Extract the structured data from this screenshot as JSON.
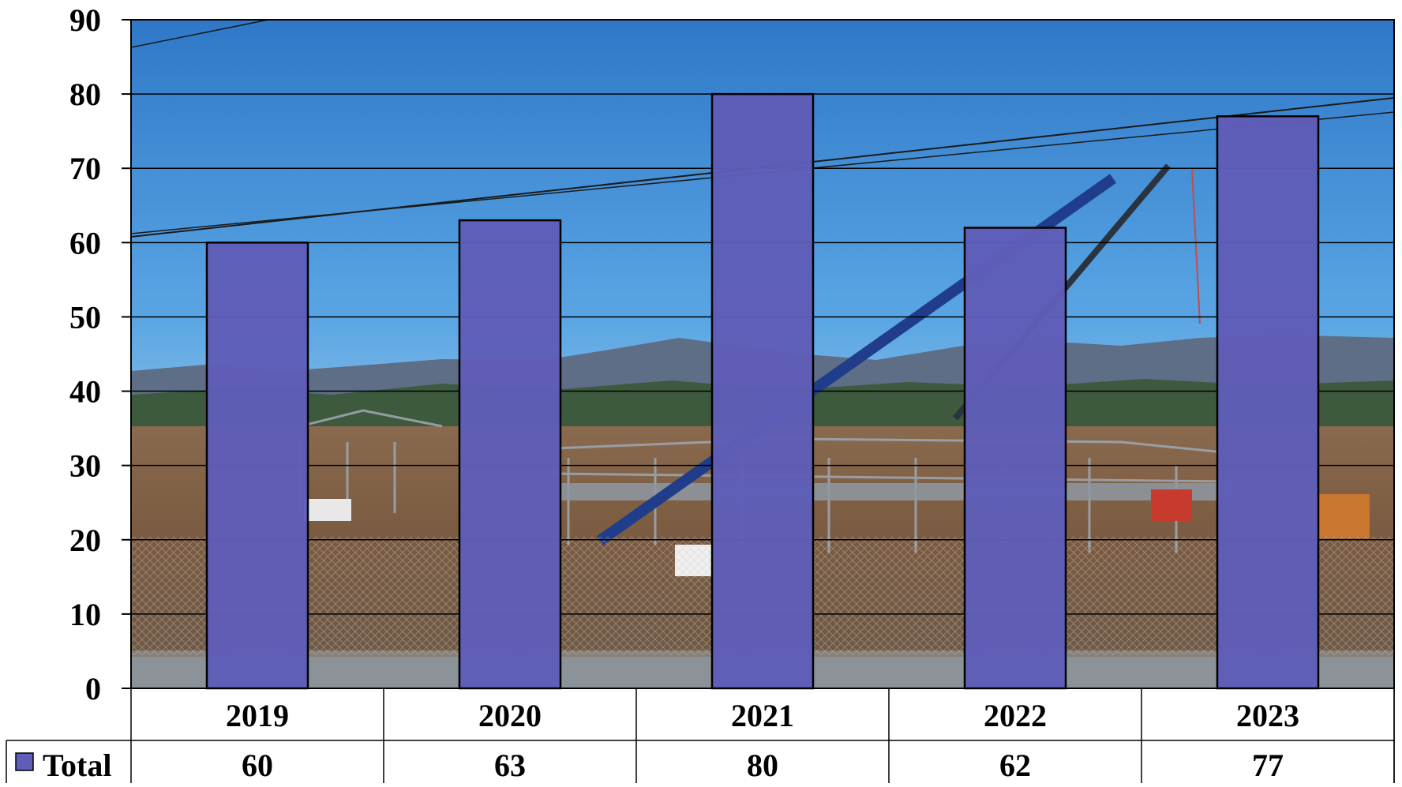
{
  "chart_data": {
    "type": "bar",
    "categories": [
      "2019",
      "2020",
      "2021",
      "2022",
      "2023"
    ],
    "series": [
      {
        "name": "Total",
        "values": [
          60,
          63,
          80,
          62,
          77
        ]
      }
    ],
    "title": "",
    "xlabel": "",
    "ylabel": "",
    "ylim": [
      0,
      90
    ],
    "yticks": [
      0,
      10,
      20,
      30,
      40,
      50,
      60,
      70,
      80,
      90
    ],
    "grid": true,
    "legend": "data table, left of value row",
    "data_table": true,
    "background": "photograph of a building under construction with steel frames, a crane, trucks and mountains under a blue sky",
    "colors": {
      "bar_fill": "#5F5DB8",
      "bar_stroke": "#000000",
      "gridline": "#000000"
    }
  }
}
